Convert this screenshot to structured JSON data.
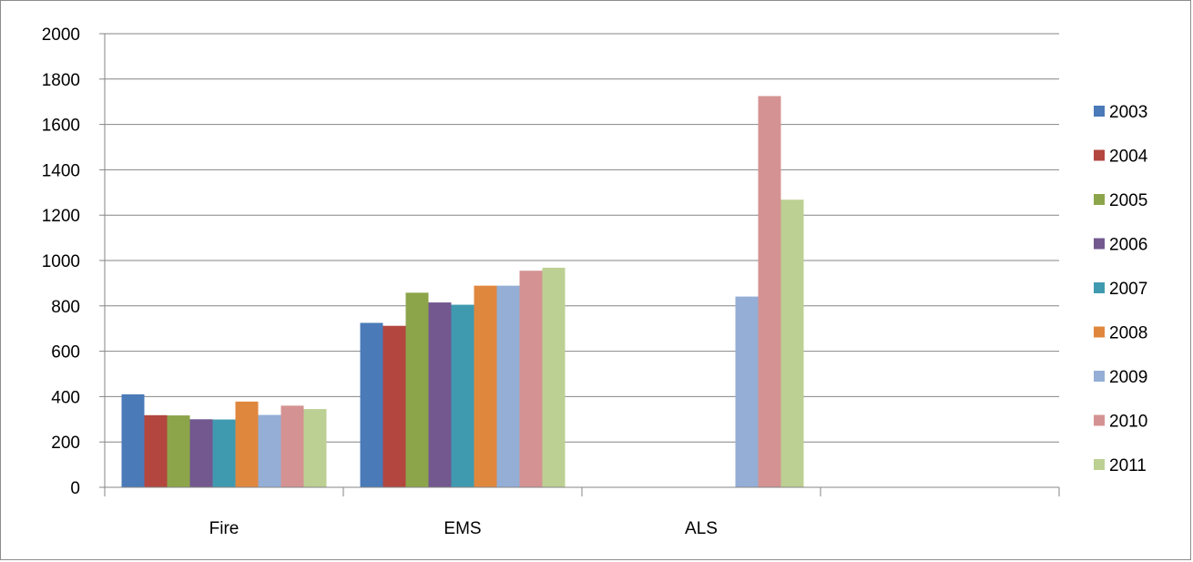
{
  "chart_data": {
    "type": "bar",
    "categories": [
      "Fire",
      "EMS",
      "ALS",
      ""
    ],
    "ylim": [
      0,
      2000
    ],
    "yticks": [
      0,
      200,
      400,
      600,
      800,
      1000,
      1200,
      1400,
      1600,
      1800,
      2000
    ],
    "grid": true,
    "legend_position": "right",
    "series": [
      {
        "name": "2003",
        "color": "#4a7ab8",
        "values": [
          410,
          725,
          null,
          null
        ]
      },
      {
        "name": "2004",
        "color": "#b3463f",
        "values": [
          318,
          712,
          null,
          null
        ]
      },
      {
        "name": "2005",
        "color": "#8da54a",
        "values": [
          317,
          858,
          null,
          null
        ]
      },
      {
        "name": "2006",
        "color": "#72588f",
        "values": [
          300,
          815,
          null,
          null
        ]
      },
      {
        "name": "2007",
        "color": "#3f9ab0",
        "values": [
          299,
          805,
          null,
          null
        ]
      },
      {
        "name": "2008",
        "color": "#e0873e",
        "values": [
          378,
          889,
          null,
          null
        ]
      },
      {
        "name": "2009",
        "color": "#94aed6",
        "values": [
          319,
          889,
          841,
          null
        ]
      },
      {
        "name": "2010",
        "color": "#d49392",
        "values": [
          360,
          955,
          1725,
          null
        ]
      },
      {
        "name": "2011",
        "color": "#bcd093",
        "values": [
          345,
          968,
          1268,
          null
        ]
      }
    ]
  }
}
